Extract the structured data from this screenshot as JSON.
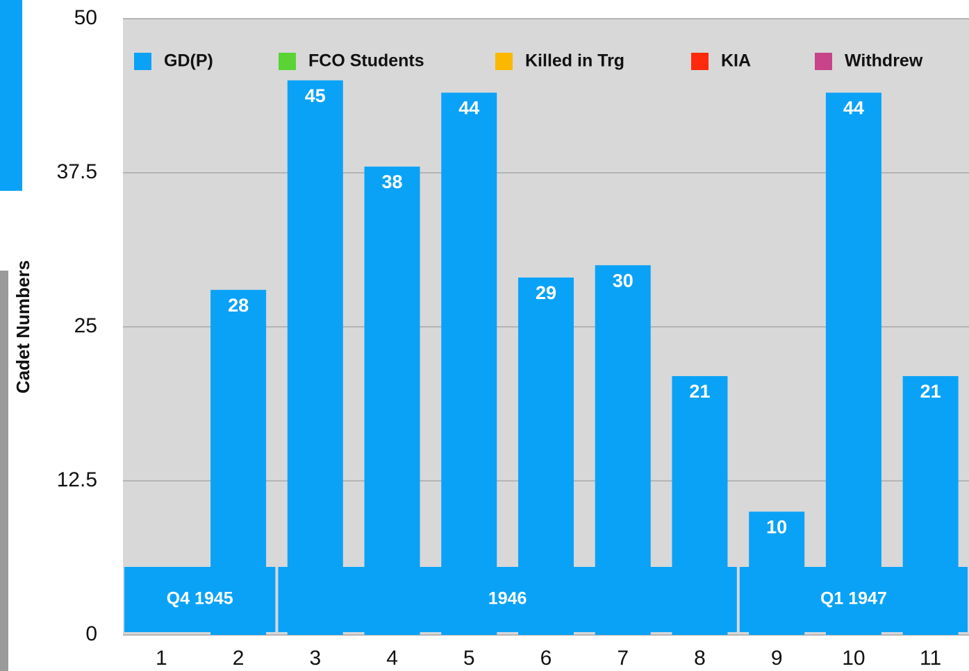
{
  "chart_data": {
    "type": "bar",
    "y_label": "Cadet Numbers",
    "categories": [
      "1",
      "2",
      "3",
      "4",
      "5",
      "6",
      "7",
      "8",
      "9",
      "10",
      "11"
    ],
    "series": [
      {
        "name": "GD(P)",
        "color": "#0aa2f7",
        "values": [
          null,
          28,
          45,
          38,
          44,
          29,
          30,
          21,
          10,
          44,
          21
        ]
      }
    ],
    "legend": [
      {
        "name": "GD(P)",
        "color": "#0aa2f7"
      },
      {
        "name": "FCO Students",
        "color": "#5ad334"
      },
      {
        "name": "Killed in Trg",
        "color": "#fbb800"
      },
      {
        "name": "KIA",
        "color": "#fd2a0e"
      },
      {
        "name": "Withdrew",
        "color": "#c8438a"
      }
    ],
    "groups": [
      {
        "label": "Q4 1945",
        "span": 2
      },
      {
        "label": "1946",
        "span": 6
      },
      {
        "label": "Q1 1947",
        "span": 3
      }
    ],
    "ylim": [
      0,
      50
    ],
    "yticks": [
      0,
      12.5,
      25,
      37.5,
      50
    ],
    "grid": true
  }
}
